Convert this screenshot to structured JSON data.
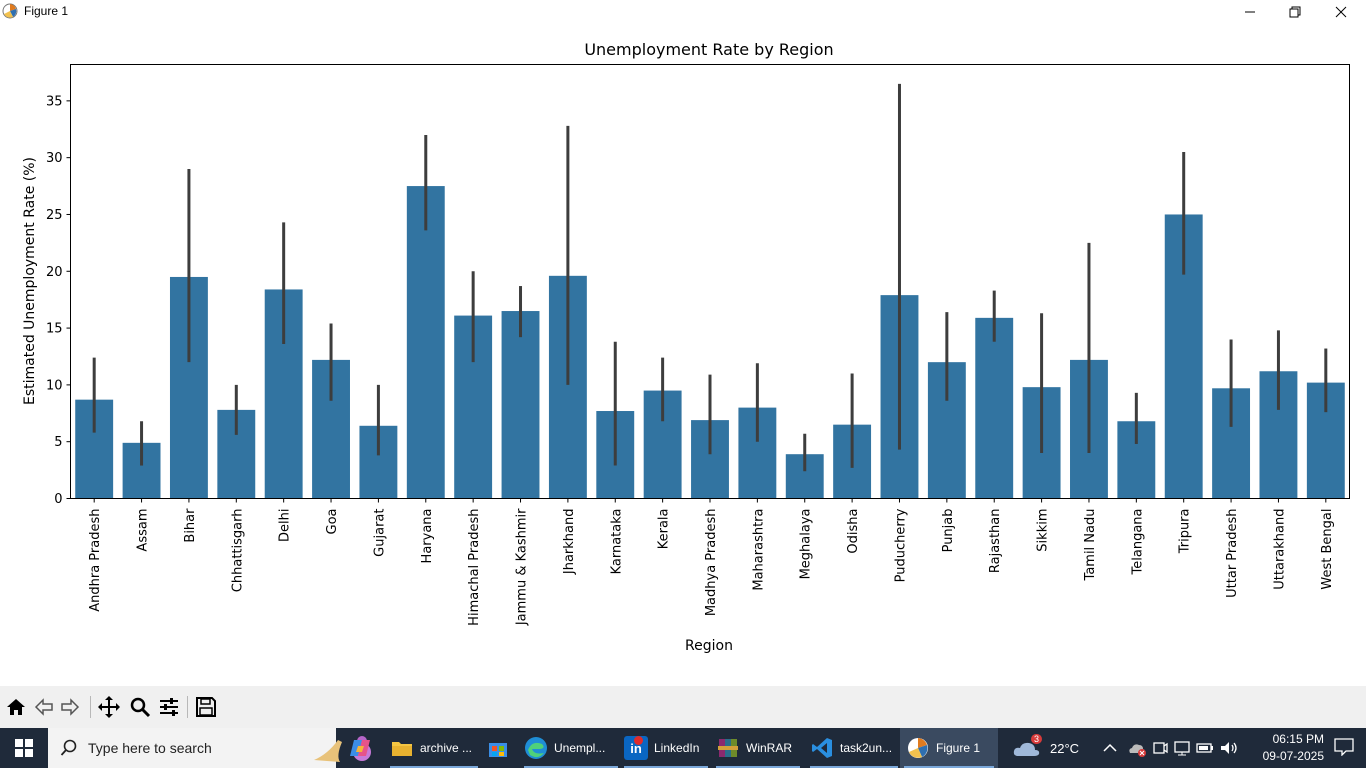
{
  "window": {
    "title": "Figure 1"
  },
  "chart_data": {
    "type": "bar",
    "title": "Unemployment Rate by Region",
    "xlabel": "Region",
    "ylabel": "Estimated Unemployment Rate (%)",
    "ylim": [
      0,
      38.2
    ],
    "yticks": [
      0,
      5,
      10,
      15,
      20,
      25,
      30,
      35
    ],
    "grid": false,
    "bar_color": "#3274a1",
    "errorbar_color": "#3d3d3d",
    "categories": [
      "Andhra Pradesh",
      "Assam",
      "Bihar",
      "Chhattisgarh",
      "Delhi",
      "Goa",
      "Gujarat",
      "Haryana",
      "Himachal Pradesh",
      "Jammu & Kashmir",
      "Jharkhand",
      "Karnataka",
      "Kerala",
      "Madhya Pradesh",
      "Maharashtra",
      "Meghalaya",
      "Odisha",
      "Puducherry",
      "Punjab",
      "Rajasthan",
      "Sikkim",
      "Tamil Nadu",
      "Telangana",
      "Tripura",
      "Uttar Pradesh",
      "Uttarakhand",
      "West Bengal"
    ],
    "values": [
      8.7,
      4.9,
      19.5,
      7.8,
      18.4,
      12.2,
      6.4,
      27.5,
      16.1,
      16.5,
      19.6,
      7.7,
      9.5,
      6.9,
      8.0,
      3.9,
      6.5,
      17.9,
      12.0,
      15.9,
      9.8,
      12.2,
      6.8,
      25.0,
      9.7,
      11.2,
      10.2
    ],
    "ci_low": [
      5.8,
      2.9,
      12.0,
      5.6,
      13.6,
      8.6,
      3.8,
      23.6,
      12.0,
      14.2,
      10.0,
      2.9,
      6.8,
      3.9,
      5.0,
      2.4,
      2.7,
      4.3,
      8.6,
      13.8,
      4.0,
      4.0,
      4.8,
      19.7,
      6.3,
      7.8,
      7.6
    ],
    "ci_high": [
      12.4,
      6.8,
      29.0,
      10.0,
      24.3,
      15.4,
      10.0,
      32.0,
      20.0,
      18.7,
      32.8,
      13.8,
      12.4,
      10.9,
      11.9,
      5.7,
      11.0,
      36.5,
      16.4,
      18.3,
      16.3,
      22.5,
      9.3,
      30.5,
      14.0,
      14.8,
      13.2
    ]
  },
  "toolbar": {
    "icons": [
      "home-icon",
      "back-arrow-icon",
      "forward-arrow-icon",
      "pan-icon",
      "zoom-icon",
      "configure-subplots-icon",
      "save-icon"
    ]
  },
  "taskbar": {
    "search_placeholder": "Type here to search",
    "apps": [
      {
        "label": "archive ...",
        "icon": "folder-icon"
      },
      {
        "label": "Unempl...",
        "icon": "edge-icon"
      },
      {
        "label": "LinkedIn",
        "icon": "linkedin-icon"
      },
      {
        "label": "WinRAR",
        "icon": "winrar-icon"
      },
      {
        "label": "task2un...",
        "icon": "vscode-icon"
      },
      {
        "label": "Figure 1",
        "icon": "matplotlib-icon"
      }
    ],
    "weather": {
      "temp": "22°C",
      "badge": "3"
    },
    "clock": {
      "time": "06:15 PM",
      "date": "09-07-2025"
    }
  }
}
